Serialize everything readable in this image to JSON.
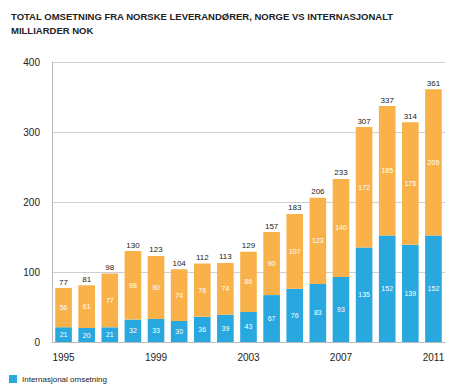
{
  "chart_data": {
    "type": "bar",
    "title": "TOTAL OMSETNING FRA NORSKE LEVERANDØRER, NORGE VS INTERNASJONALT",
    "subtitle": "MILLIARDER NOK",
    "categories": [
      "1995",
      null,
      null,
      null,
      "1999",
      null,
      null,
      null,
      "2003",
      null,
      null,
      null,
      "2007",
      null,
      null,
      null,
      "2011"
    ],
    "series": [
      {
        "name": "Internasjonal omsetning",
        "color": "#29a8e0",
        "values": [
          21,
          20,
          21,
          32,
          33,
          30,
          36,
          39,
          43,
          67,
          76,
          83,
          93,
          135,
          152,
          139,
          152
        ]
      },
      {
        "color": "#f9b24a",
        "values": [
          56,
          61,
          77,
          98,
          90,
          74,
          76,
          74,
          86,
          90,
          107,
          123,
          140,
          172,
          185,
          175,
          209
        ]
      }
    ],
    "totals": [
      77,
      81,
      98,
      130,
      123,
      104,
      112,
      113,
      129,
      157,
      183,
      206,
      233,
      307,
      337,
      314,
      361
    ],
    "ylim": [
      0,
      400
    ],
    "yticks": [
      0,
      100,
      200,
      300,
      400
    ],
    "grid": true,
    "stacked": true,
    "data_labels": true,
    "legend": "bottom-left"
  }
}
